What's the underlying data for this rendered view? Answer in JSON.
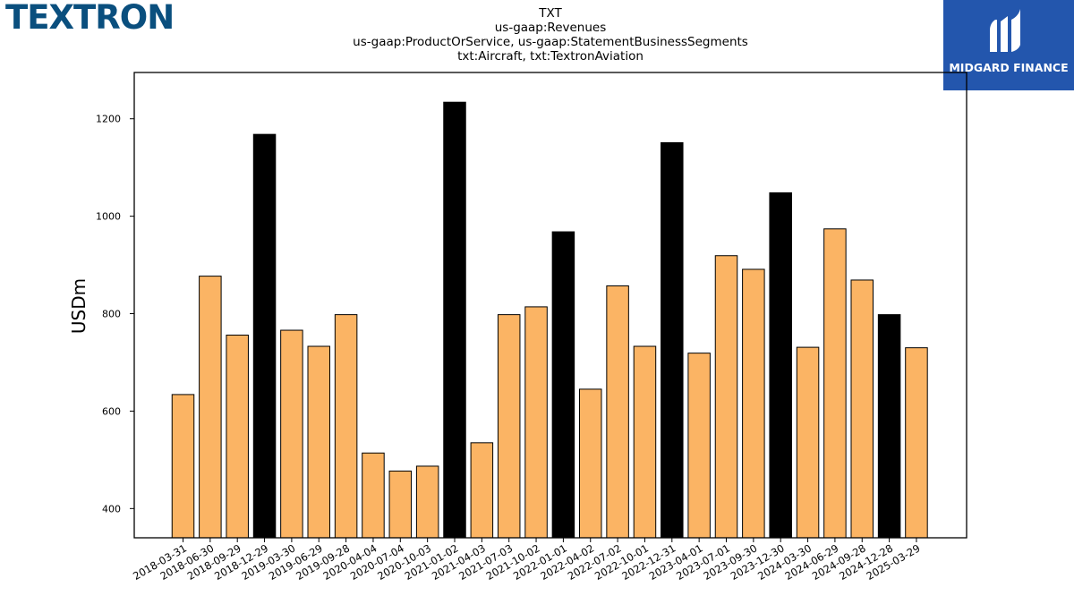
{
  "logos": {
    "left_text": "TEXTRON",
    "right_text": "MIDGARD FINANCE",
    "left_color": "#0a4f7e",
    "right_bg": "#2356ad"
  },
  "chart_data": {
    "type": "bar",
    "title_lines": [
      "TXT",
      "us-gaap:Revenues",
      "us-gaap:ProductOrService, us-gaap:StatementBusinessSegments",
      "txt:Aircraft, txt:TextronAviation"
    ],
    "xlabel": "",
    "ylabel": "USDm",
    "ylim": [
      340,
      1295
    ],
    "yticks": [
      400,
      600,
      800,
      1000,
      1200
    ],
    "grid": false,
    "colors": {
      "quarter": "#fbb464",
      "year_end": "#000000",
      "edge": "#000000"
    },
    "categories": [
      "2018-03-31",
      "2018-06-30",
      "2018-09-29",
      "2018-12-29",
      "2019-03-30",
      "2019-06-29",
      "2019-09-28",
      "2020-04-04",
      "2020-07-04",
      "2020-10-03",
      "2021-01-02",
      "2021-04-03",
      "2021-07-03",
      "2021-10-02",
      "2022-01-01",
      "2022-04-02",
      "2022-07-02",
      "2022-10-01",
      "2022-12-31",
      "2023-04-01",
      "2023-07-01",
      "2023-09-30",
      "2023-12-30",
      "2024-03-30",
      "2024-06-29",
      "2024-09-28",
      "2024-12-28",
      "2025-03-29"
    ],
    "values": [
      634,
      877,
      756,
      1168,
      766,
      733,
      798,
      514,
      477,
      487,
      1234,
      535,
      798,
      814,
      968,
      645,
      857,
      733,
      1151,
      719,
      919,
      891,
      1048,
      731,
      974,
      869,
      798,
      730
    ],
    "highlight": [
      false,
      false,
      false,
      true,
      false,
      false,
      false,
      false,
      false,
      false,
      true,
      false,
      false,
      false,
      true,
      false,
      false,
      false,
      true,
      false,
      false,
      false,
      true,
      false,
      false,
      false,
      true,
      false
    ]
  }
}
